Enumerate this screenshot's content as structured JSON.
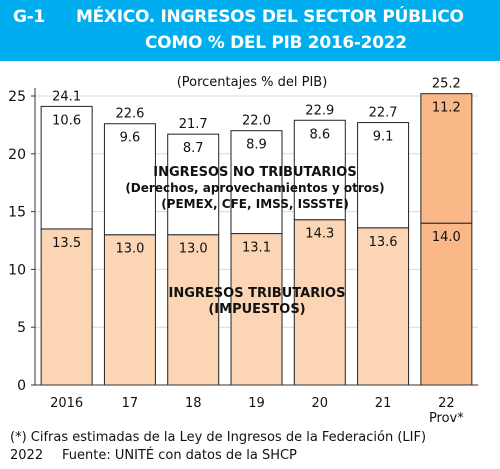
{
  "header": {
    "figure_id": "G-1",
    "title_line1": "MÉXICO. INGRESOS DEL SECTOR PÚBLICO",
    "title_line2": "COMO % DEL PIB 2016-2022"
  },
  "colors": {
    "banner": "#00aeef",
    "tributarios_fill": "#fcd5b5",
    "prov_fill": "#fab889",
    "no_tributarios_fill": "#ffffff",
    "grid": "#d9d9d9"
  },
  "chart_data": {
    "type": "bar",
    "stacked": true,
    "subtitle": "(Porcentajes % del PIB)",
    "categories": [
      "2016",
      "17",
      "18",
      "19",
      "20",
      "21",
      "22"
    ],
    "category_sublabels": [
      "",
      "",
      "",
      "",
      "",
      "",
      "Prov*"
    ],
    "series": [
      {
        "values": [
          13.5,
          13.0,
          13.0,
          13.1,
          14.3,
          13.6,
          14.0
        ]
      },
      {
        "values": [
          10.6,
          9.6,
          8.7,
          8.9,
          8.6,
          9.1,
          11.2
        ]
      }
    ],
    "totals": [
      "24.1",
      "22.6",
      "21.7",
      "22.0",
      "22.9",
      "22.7",
      "25.2"
    ],
    "value_labels_bottom": [
      "13.5",
      "13.0",
      "13.0",
      "13.1",
      "14.3",
      "13.6",
      "14.0"
    ],
    "value_labels_top": [
      "10.6",
      "9.6",
      "8.7",
      "8.9",
      "8.6",
      "9.1",
      "11.2"
    ],
    "ylim": [
      0,
      25
    ],
    "yticks": [
      0,
      5,
      10,
      15,
      20,
      25
    ],
    "grid": true,
    "annotations": {
      "no_tributarios": [
        "INGRESOS NO TRIBUTARIOS",
        "(Derechos, aprovechamientos y otros)",
        "(PEMEX, CFE, IMSS, ISSSTE)"
      ],
      "tributarios": [
        "INGRESOS TRIBUTARIOS",
        "(IMPUESTOS)"
      ]
    }
  },
  "footer": {
    "note_line1": "(*) Cifras estimadas de la Ley de Ingresos de la Federación (LIF)",
    "note_year": "2022",
    "source": "Fuente: UNITÉ con datos de la SHCP"
  }
}
